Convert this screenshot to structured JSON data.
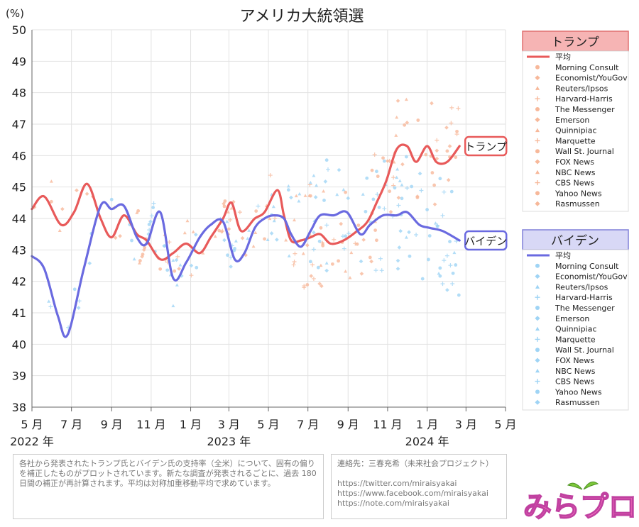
{
  "chart_data": {
    "type": "line",
    "title": "アメリカ大統領選",
    "ylabel": "(%)",
    "ylim": [
      38,
      50
    ],
    "yticks": [
      38,
      39,
      40,
      41,
      42,
      43,
      44,
      45,
      46,
      47,
      48,
      49,
      50
    ],
    "xlim": [
      "2022-05-01",
      "2024-05-01"
    ],
    "xticks": [
      {
        "date": "2022-05-01",
        "label": "5 月"
      },
      {
        "date": "2022-07-01",
        "label": "7 月"
      },
      {
        "date": "2022-09-01",
        "label": "9 月"
      },
      {
        "date": "2022-11-01",
        "label": "11 月"
      },
      {
        "date": "2023-01-01",
        "label": "1 月"
      },
      {
        "date": "2023-03-01",
        "label": "3 月"
      },
      {
        "date": "2023-05-01",
        "label": "5 月"
      },
      {
        "date": "2023-07-01",
        "label": "7 月"
      },
      {
        "date": "2023-09-01",
        "label": "9 月"
      },
      {
        "date": "2023-11-01",
        "label": "11 月"
      },
      {
        "date": "2024-01-01",
        "label": "1 月"
      },
      {
        "date": "2024-03-01",
        "label": "3 月"
      },
      {
        "date": "2024-05-01",
        "label": "5 月"
      }
    ],
    "year_labels": [
      {
        "date": "2022-05-01",
        "label": "2022 年"
      },
      {
        "date": "2023-03-01",
        "label": "2023 年"
      },
      {
        "date": "2024-01-01",
        "label": "2024 年"
      }
    ],
    "grid": true,
    "series": [
      {
        "name": "トランプ",
        "color": "#e85a5a",
        "end_label": "トランプ",
        "x": [
          "2022-05-01",
          "2022-05-20",
          "2022-06-15",
          "2022-07-05",
          "2022-07-25",
          "2022-08-15",
          "2022-09-01",
          "2022-09-20",
          "2022-10-10",
          "2022-10-25",
          "2022-11-15",
          "2022-12-05",
          "2022-12-25",
          "2023-01-15",
          "2023-02-01",
          "2023-02-20",
          "2023-03-05",
          "2023-03-20",
          "2023-04-10",
          "2023-04-25",
          "2023-05-15",
          "2023-05-25",
          "2023-06-05",
          "2023-06-20",
          "2023-07-05",
          "2023-07-20",
          "2023-08-05",
          "2023-08-25",
          "2023-09-15",
          "2023-10-01",
          "2023-10-15",
          "2023-10-30",
          "2023-11-15",
          "2023-12-01",
          "2023-12-15",
          "2024-01-01",
          "2024-01-15",
          "2024-02-01",
          "2024-02-20"
        ],
        "y": [
          44.3,
          44.7,
          43.8,
          44.2,
          45.1,
          44.0,
          43.4,
          44.1,
          43.5,
          43.3,
          42.7,
          42.9,
          43.2,
          42.9,
          43.4,
          44.0,
          44.5,
          43.6,
          44.0,
          44.2,
          44.9,
          44.1,
          43.3,
          43.3,
          43.4,
          43.5,
          43.2,
          43.3,
          43.6,
          43.9,
          44.5,
          45.2,
          46.2,
          46.3,
          45.8,
          46.3,
          45.8,
          45.8,
          46.3
        ]
      },
      {
        "name": "バイデン",
        "color": "#6a6ae0",
        "end_label": "バイデン",
        "x": [
          "2022-05-01",
          "2022-05-20",
          "2022-06-10",
          "2022-06-25",
          "2022-07-20",
          "2022-08-15",
          "2022-09-01",
          "2022-09-20",
          "2022-10-10",
          "2022-10-25",
          "2022-11-15",
          "2022-12-05",
          "2022-12-25",
          "2023-01-15",
          "2023-02-01",
          "2023-02-20",
          "2023-03-10",
          "2023-03-25",
          "2023-04-10",
          "2023-04-25",
          "2023-05-10",
          "2023-05-25",
          "2023-06-05",
          "2023-06-20",
          "2023-07-05",
          "2023-07-20",
          "2023-08-10",
          "2023-08-30",
          "2023-09-20",
          "2023-10-05",
          "2023-10-25",
          "2023-11-15",
          "2023-12-01",
          "2023-12-20",
          "2024-01-05",
          "2024-01-25",
          "2024-02-20"
        ],
        "y": [
          42.8,
          42.4,
          40.9,
          40.3,
          42.4,
          44.4,
          44.3,
          44.4,
          43.4,
          43.2,
          44.2,
          42.1,
          42.6,
          43.4,
          43.8,
          43.9,
          42.7,
          42.9,
          43.7,
          44.0,
          44.1,
          44.0,
          43.5,
          43.1,
          43.6,
          44.1,
          44.1,
          44.2,
          43.5,
          43.8,
          44.1,
          44.1,
          44.2,
          43.8,
          43.7,
          43.6,
          43.3
        ]
      }
    ]
  },
  "legend": {
    "trump": {
      "header": "トランプ",
      "avg_label": "平均",
      "pollsters": [
        "Morning Consult",
        "Economist/YouGov",
        "Reuters/Ipsos",
        "Harvard-Harris",
        "The Messenger",
        "Emerson",
        "Quinnipiac",
        "Marquette",
        "Wall St. Journal",
        "FOX News",
        "NBC News",
        "CBS News",
        "Yahoo News",
        "Rasmussen"
      ],
      "marker_color": "#f7b89a",
      "header_bg": "#f6b4b4",
      "header_border": "#e07070"
    },
    "biden": {
      "header": "バイデン",
      "avg_label": "平均",
      "pollsters": [
        "Morning Consult",
        "Economist/YouGov",
        "Reuters/Ipsos",
        "Harvard-Harris",
        "The Messenger",
        "Emerson",
        "Quinnipiac",
        "Marquette",
        "Wall St. Journal",
        "FOX News",
        "NBC News",
        "CBS News",
        "Yahoo News",
        "Rasmussen"
      ],
      "marker_color": "#9fd4f5",
      "header_bg": "#d8d8f6",
      "header_border": "#8080d8"
    }
  },
  "notes": {
    "description": "各社から発表されたトランプ氏とバイデン氏の支持率（全米）について、固有の偏りを補正したものがプロットされています。新たな調査が発表されるごとに、過去 180 日間の補正が再計算されます。平均は対称加重移動平均で求めています。",
    "contact": "連絡先：三春充希（未来社会プロジェクト）",
    "links": [
      "https://twitter.com/miraisyakai",
      "https://www.facebook.com/miraisyakai",
      "https://note.com/miraisyakai"
    ]
  },
  "logo_text": "みらプロ"
}
